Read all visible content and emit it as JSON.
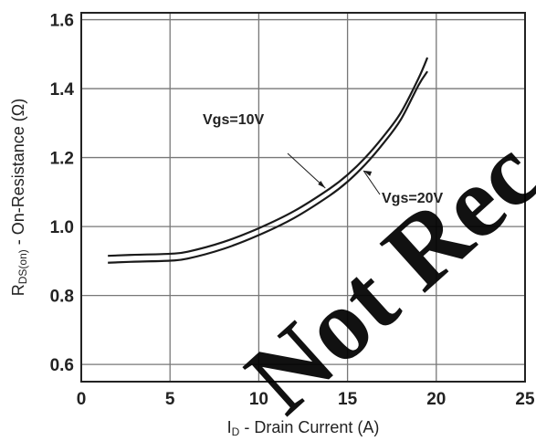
{
  "chart_data": {
    "type": "line",
    "xlabel_main": "I",
    "xlabel_sub": "D",
    "xlabel_rest": " - Drain Current (A)",
    "ylabel_main": "R",
    "ylabel_sub": "DS(on)",
    "ylabel_rest": " - On-Resistance (Ω)",
    "xlim": [
      0,
      25
    ],
    "ylim": [
      0.55,
      1.62
    ],
    "xticks": [
      0,
      5,
      10,
      15,
      20,
      25
    ],
    "yticks": [
      0.6,
      0.8,
      1.0,
      1.2,
      1.4,
      1.6
    ],
    "grid": true,
    "series": [
      {
        "name": "Vgs=10V",
        "x": [
          1.5,
          3,
          5,
          6,
          8,
          10,
          12,
          14,
          15,
          16,
          17,
          18,
          19,
          19.5
        ],
        "y": [
          0.915,
          0.918,
          0.921,
          0.927,
          0.955,
          0.995,
          1.045,
          1.11,
          1.15,
          1.2,
          1.26,
          1.33,
          1.43,
          1.49
        ]
      },
      {
        "name": "Vgs=20V",
        "x": [
          1.5,
          3,
          5,
          6,
          8,
          10,
          12,
          14,
          15,
          16,
          17,
          18,
          19,
          19.5
        ],
        "y": [
          0.895,
          0.898,
          0.901,
          0.907,
          0.935,
          0.975,
          1.025,
          1.09,
          1.13,
          1.18,
          1.24,
          1.31,
          1.41,
          1.45
        ]
      }
    ],
    "annotations": [
      {
        "text": "Vgs=10V",
        "series": 0,
        "at_x": 13.8
      },
      {
        "text": "Vgs=20V",
        "series": 1,
        "at_x": 15.8
      }
    ],
    "colors": {
      "line": "#1a1a1a",
      "grid": "#777777",
      "axis": "#222222"
    },
    "watermark": "Not Rec"
  }
}
